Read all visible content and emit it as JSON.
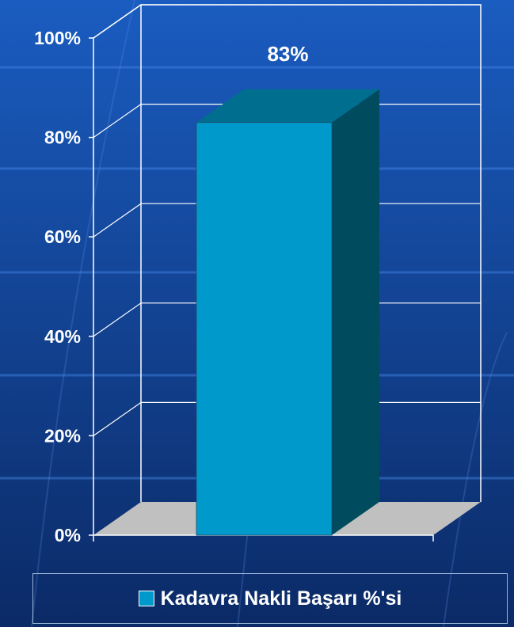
{
  "colors": {
    "background_top": "#1a5cc0",
    "background_bottom": "#0b2a66",
    "text": "#ffffff",
    "bar_front": "#0099cc",
    "bar_top": "#006e8f",
    "bar_side": "#004c5e",
    "floor": "#c0c0c0",
    "gridline": "#ffffff",
    "legend_border": "#9bb4d8"
  },
  "chart_data": {
    "type": "bar",
    "three_d": true,
    "categories": [
      ""
    ],
    "series": [
      {
        "name": "Kadavra Nakli Başarı %'si",
        "values": [
          83
        ]
      }
    ],
    "data_labels": [
      "83%"
    ],
    "y_tick_labels": [
      "0%",
      "20%",
      "40%",
      "60%",
      "80%",
      "100%"
    ],
    "ylim": [
      0,
      100
    ],
    "grid": true,
    "legend_position": "bottom"
  },
  "legend": {
    "label": "Kadavra Nakli Başarı %'si"
  }
}
